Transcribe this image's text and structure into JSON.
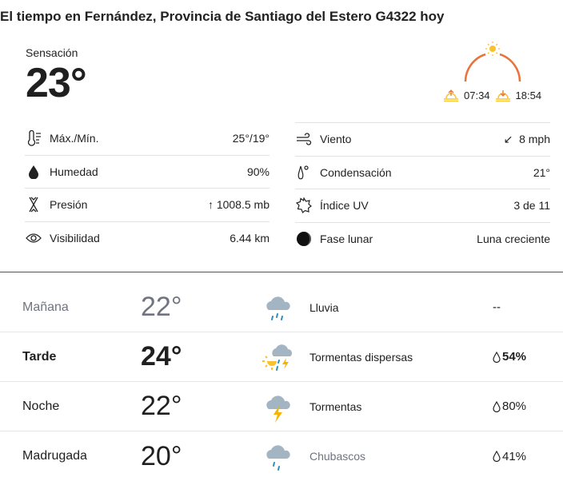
{
  "title": "El tiempo en Fernández, Provincia de Santiago del Estero G4322 hoy",
  "current": {
    "feels_label": "Sensación",
    "feels_value": "23°",
    "sunrise": "07:34",
    "sunset": "18:54"
  },
  "details_left": [
    {
      "icon": "thermometer-icon",
      "label": "Máx./Mín.",
      "value": "25°/19°"
    },
    {
      "icon": "humidity-drop-icon",
      "label": "Humedad",
      "value": "90%"
    },
    {
      "icon": "pressure-icon",
      "label": "Presión",
      "value": "↑ 1008.5 mb"
    },
    {
      "icon": "eye-icon",
      "label": "Visibilidad",
      "value": "6.44 km"
    }
  ],
  "details_right": [
    {
      "icon": "wind-icon",
      "label": "Viento",
      "value": "↙  8 mph"
    },
    {
      "icon": "dew-point-icon",
      "label": "Condensación",
      "value": "21°"
    },
    {
      "icon": "uv-sun-icon",
      "label": "Índice UV",
      "value": "3 de 11"
    },
    {
      "icon": "moon-icon",
      "label": "Fase lunar",
      "value": "Luna creciente"
    }
  ],
  "forecast": [
    {
      "period": "Mañana",
      "temp": "22°",
      "icon": "rain-icon",
      "condition": "Lluvia",
      "precip": "--"
    },
    {
      "period": "Tarde",
      "temp": "24°",
      "icon": "scattered-thunderstorms-icon",
      "condition": "Tormentas dispersas",
      "precip": "54%"
    },
    {
      "period": "Noche",
      "temp": "22°",
      "icon": "thunderstorm-icon",
      "condition": "Tormentas",
      "precip": "80%"
    },
    {
      "period": "Madrugada",
      "temp": "20°",
      "icon": "showers-icon",
      "condition": "Chubascos",
      "precip": "41%"
    }
  ],
  "colors": {
    "arc": "#e8743b",
    "sun": "#fbc02d",
    "rain": "#2e8fb5",
    "cloud": "#a3b4c2",
    "bolt": "#f6b400"
  }
}
